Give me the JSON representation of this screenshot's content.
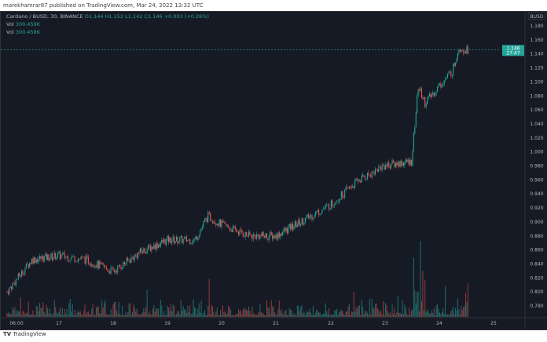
{
  "header": {
    "published": "marekhamrar87 published on TradingView.com, Mar 24, 2022 13:32 UTC"
  },
  "legend": {
    "symbol": "Cardano / BUSD, 30, BINANCE",
    "o": "O1.144",
    "h": "H1.152",
    "l": "L1.142",
    "c": "C1.146",
    "chg": "+0.003 (+0.26%)",
    "vol1_label": "Vol",
    "vol1": "300.459K",
    "vol2_label": "Vol",
    "vol2": "300.459K"
  },
  "footer": {
    "brand": "TradingView"
  },
  "colors": {
    "up": "#26a69a",
    "down": "#ef5350",
    "bg": "#161a25"
  },
  "chart_data": {
    "type": "candlestick",
    "currency": "BUSD",
    "last_price": "1.146",
    "countdown": "27:47",
    "ylim": [
      0.77,
      1.19
    ],
    "y_ticks": [
      "1.180",
      "1.160",
      "1.140",
      "1.120",
      "1.100",
      "1.080",
      "1.060",
      "1.040",
      "1.020",
      "1.000",
      "0.980",
      "0.960",
      "0.940",
      "0.920",
      "0.900",
      "0.880",
      "0.860",
      "0.840",
      "0.820",
      "0.800",
      "0.780"
    ],
    "x_ticks": [
      "06:00",
      "17",
      "18",
      "19",
      "20",
      "21",
      "22",
      "23",
      "24",
      "25"
    ],
    "price_path": [
      [
        "16 01:00",
        0.8
      ],
      [
        "16 12:00",
        0.846
      ],
      [
        "17 00:00",
        0.852
      ],
      [
        "17 12:00",
        0.846
      ],
      [
        "18 00:00",
        0.829
      ],
      [
        "18 12:00",
        0.857
      ],
      [
        "19 00:00",
        0.874
      ],
      [
        "19 12:00",
        0.874
      ],
      [
        "19 18:00",
        0.908
      ],
      [
        "20 00:00",
        0.896
      ],
      [
        "20 12:00",
        0.88
      ],
      [
        "21 00:00",
        0.88
      ],
      [
        "21 12:00",
        0.902
      ],
      [
        "22 00:00",
        0.924
      ],
      [
        "22 12:00",
        0.958
      ],
      [
        "23 00:00",
        0.981
      ],
      [
        "23 12:00",
        0.986
      ],
      [
        "23 15:00",
        1.093
      ],
      [
        "23 18:00",
        1.07
      ],
      [
        "24 00:00",
        1.093
      ],
      [
        "24 06:00",
        1.115
      ],
      [
        "24 09:00",
        1.149
      ],
      [
        "24 13:00",
        1.146
      ]
    ]
  }
}
